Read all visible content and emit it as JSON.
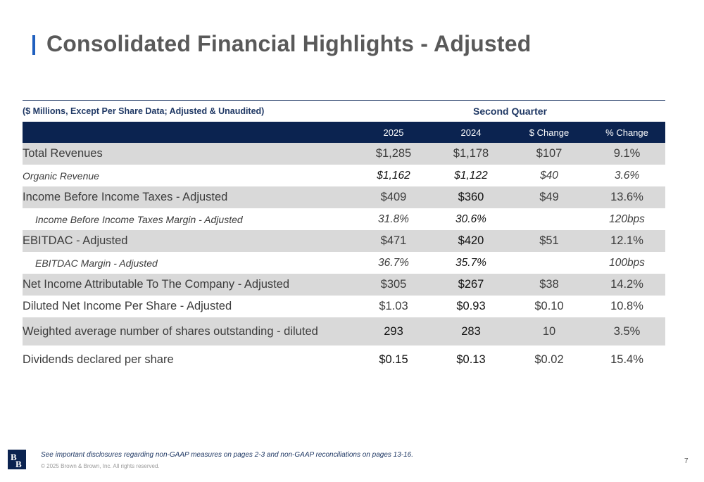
{
  "title": "Consolidated Financial Highlights - Adjusted",
  "table": {
    "caption": "($ Millions, Except Per Share Data; Adjusted & Unaudited)",
    "group_header": "Second Quarter",
    "columns": [
      "2025",
      "2024",
      "$ Change",
      "% Change"
    ],
    "rows": [
      {
        "label": "Total Revenues",
        "values": [
          "$1,285",
          "$1,178",
          "$107",
          "9.1%"
        ]
      },
      {
        "label": "Organic Revenue",
        "values": [
          "$1,162",
          "$1,122",
          "$40",
          "3.6%"
        ]
      },
      {
        "label": "Income Before Income Taxes - Adjusted",
        "values": [
          "$409",
          "$360",
          "$49",
          "13.6%"
        ]
      },
      {
        "label": "Income Before Income Taxes Margin - Adjusted",
        "values": [
          "31.8%",
          "30.6%",
          "",
          "120bps"
        ]
      },
      {
        "label": "EBITDAC - Adjusted",
        "values": [
          "$471",
          "$420",
          "$51",
          "12.1%"
        ]
      },
      {
        "label": "EBITDAC Margin - Adjusted",
        "values": [
          "36.7%",
          "35.7%",
          "",
          "100bps"
        ]
      },
      {
        "label": "Net Income Attributable To The Company - Adjusted",
        "values": [
          "$305",
          "$267",
          "$38",
          "14.2%"
        ]
      },
      {
        "label": "Diluted Net Income Per Share - Adjusted",
        "values": [
          "$1.03",
          "$0.93",
          "$0.10",
          "10.8%"
        ]
      },
      {
        "label": "Weighted average number of shares outstanding - diluted",
        "values": [
          "293",
          "283",
          "10",
          "3.5%"
        ]
      },
      {
        "label": "Dividends declared per share",
        "values": [
          "$0.15",
          "$0.13",
          "$0.02",
          "15.4%"
        ]
      }
    ]
  },
  "footnote": "See important disclosures regarding non-GAAP measures on pages 2-3 and non-GAAP reconciliations on pages 13-16.",
  "copyright": "© 2025 Brown & Brown, Inc. All rights reserved.",
  "logo": {
    "icon": "brown-and-brown-bb-monogram",
    "color": "#0b2350"
  },
  "page_number": "7",
  "colors": {
    "title_accent": "#1f5fbf",
    "header_fill": "#0b2350",
    "row_shade": "#d9d9d9",
    "navy_text": "#1f3864"
  }
}
